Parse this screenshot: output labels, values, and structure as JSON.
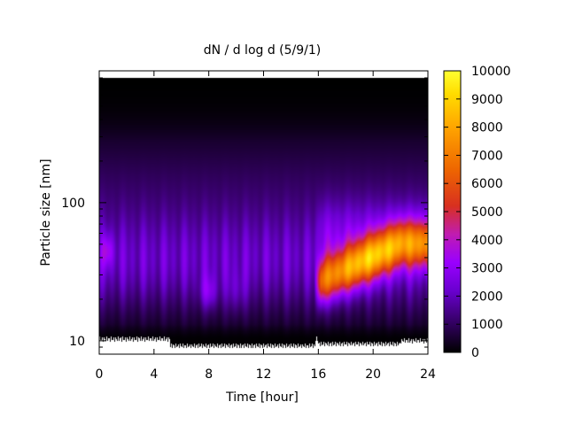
{
  "chart_data": {
    "type": "heatmap",
    "title": "dN / d log d (5/9/1)",
    "xlabel": "Time [hour]",
    "ylabel": "Particle size [nm]",
    "x_range": [
      0,
      24
    ],
    "x_ticks": [
      0,
      4,
      8,
      12,
      16,
      20,
      24
    ],
    "y_scale": "log",
    "y_range_nm": [
      8,
      900
    ],
    "y_ticks": [
      10,
      100
    ],
    "colorbar": {
      "range": [
        0,
        10000
      ],
      "ticks": [
        0,
        1000,
        2000,
        3000,
        4000,
        5000,
        6000,
        7000,
        8000,
        9000,
        10000
      ],
      "palette": [
        "#000000",
        "#5e00b4",
        "#9a00ff",
        "#c8208c",
        "#dc3c00",
        "#f07000",
        "#ffaf00",
        "#ffe000",
        "#ffff20"
      ]
    },
    "features": [
      {
        "time_hour": [
          0.3,
          0.8
        ],
        "diameter_nm": [
          35,
          55
        ],
        "peak_dNdlogd": 3800
      },
      {
        "time_hour": [
          7.6,
          8.4
        ],
        "diameter_nm": [
          18,
          30
        ],
        "peak_dNdlogd": 3000
      },
      {
        "time_hour": [
          15.8,
          24
        ],
        "diameter_nm": [
          15,
          90
        ],
        "peak_dNdlogd": 8500
      }
    ]
  }
}
